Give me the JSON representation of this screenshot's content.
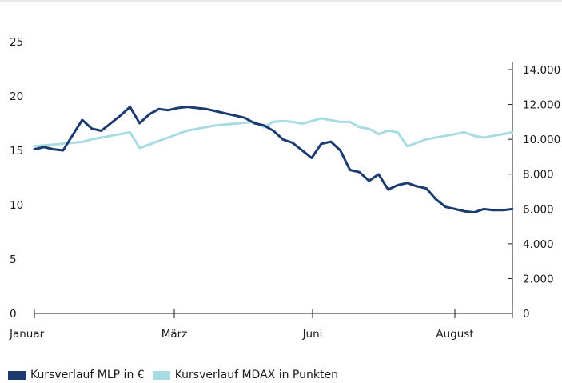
{
  "colors": {
    "mlp": "#1c3a70",
    "mdax": "#a9dbe2",
    "axis": "#1a1a1a",
    "topline": "#d0d0d0"
  },
  "chart_data": {
    "type": "line",
    "x_ticks": [
      "Januar",
      "März",
      "Juni",
      "August"
    ],
    "y_left": {
      "ticks": [
        "0",
        "5",
        "10",
        "15",
        "20",
        "25"
      ],
      "range": [
        0,
        25
      ]
    },
    "y_right": {
      "ticks": [
        "0",
        "2.000",
        "4.000",
        "6.000",
        "8.000",
        "10.000",
        "12.000",
        "14.000"
      ],
      "range": [
        0,
        16000
      ]
    },
    "grid": false,
    "legend_position": "bottom-left",
    "series": [
      {
        "name": "Kursverlauf MLP in €",
        "axis": "left",
        "x": [
          0,
          2,
          4,
          6,
          8,
          10,
          12,
          14,
          16,
          18,
          20,
          22,
          24,
          26,
          28,
          30,
          32,
          34,
          36,
          38,
          40,
          42,
          44,
          46,
          48,
          50,
          52,
          54,
          56,
          58,
          60,
          62,
          64,
          66,
          68,
          70,
          72,
          74,
          76,
          78,
          80,
          82,
          84,
          86,
          88,
          90,
          92,
          94,
          96,
          98,
          100
        ],
        "values": [
          15.1,
          15.3,
          15.1,
          15.0,
          16.4,
          17.8,
          17.0,
          16.8,
          17.5,
          18.2,
          19.0,
          17.5,
          18.3,
          18.8,
          18.7,
          18.9,
          19.0,
          18.9,
          18.8,
          18.6,
          18.4,
          18.2,
          18.0,
          17.5,
          17.3,
          16.8,
          16.0,
          15.7,
          15.0,
          14.3,
          15.6,
          15.8,
          15.0,
          13.2,
          13.0,
          12.2,
          12.8,
          11.4,
          11.8,
          12.0,
          11.7,
          11.5,
          10.5,
          9.8,
          9.6,
          9.4,
          9.3,
          9.6,
          9.5,
          9.5,
          9.6
        ]
      },
      {
        "name": "Kursverlauf MDAX in Punkten",
        "axis": "right",
        "x": [
          0,
          2,
          4,
          6,
          8,
          10,
          12,
          14,
          16,
          18,
          20,
          22,
          24,
          26,
          28,
          30,
          32,
          34,
          36,
          38,
          40,
          42,
          44,
          46,
          48,
          50,
          52,
          54,
          56,
          58,
          60,
          62,
          64,
          66,
          68,
          70,
          72,
          74,
          76,
          78,
          80,
          82,
          84,
          86,
          88,
          90,
          92,
          94,
          96,
          98,
          100
        ],
        "values": [
          9600,
          9650,
          9700,
          9750,
          9800,
          9850,
          10000,
          10100,
          10200,
          10300,
          10400,
          9500,
          9700,
          9900,
          10100,
          10300,
          10500,
          10600,
          10700,
          10800,
          10850,
          10900,
          10950,
          11000,
          10700,
          11000,
          11050,
          11000,
          10900,
          11050,
          11200,
          11100,
          11000,
          11000,
          10700,
          10600,
          10300,
          10500,
          10400,
          9600,
          9800,
          10000,
          10100,
          10200,
          10300,
          10400,
          10200,
          10100,
          10200,
          10300,
          10400
        ]
      }
    ]
  }
}
